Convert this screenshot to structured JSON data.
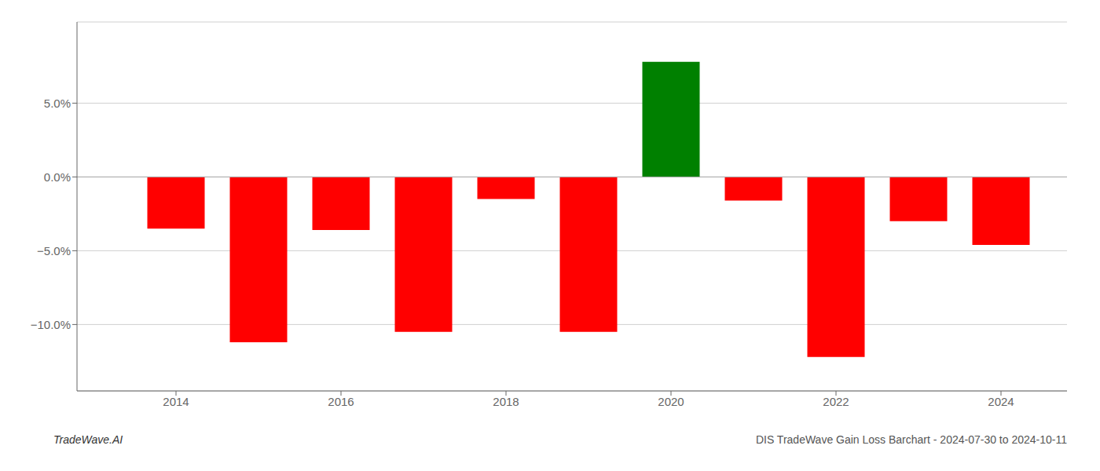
{
  "chart_data": {
    "type": "bar",
    "x": [
      2014,
      2015,
      2016,
      2017,
      2018,
      2019,
      2020,
      2021,
      2022,
      2023,
      2024
    ],
    "values": [
      -3.5,
      -11.2,
      -3.6,
      -10.5,
      -1.5,
      -10.5,
      7.8,
      -1.6,
      -12.2,
      -3.0,
      -4.6
    ],
    "colors": [
      "#ff0000",
      "#ff0000",
      "#ff0000",
      "#ff0000",
      "#ff0000",
      "#ff0000",
      "#008000",
      "#ff0000",
      "#ff0000",
      "#ff0000",
      "#ff0000"
    ],
    "xlim": [
      2012.8,
      2024.8
    ],
    "xticks": [
      2014,
      2016,
      2018,
      2020,
      2022,
      2024
    ],
    "ylim": [
      -14.5,
      10.5
    ],
    "yticks": [
      {
        "value": -10.0,
        "label": "−10.0%"
      },
      {
        "value": -5.0,
        "label": "−5.0%"
      },
      {
        "value": 0.0,
        "label": "0.0%"
      },
      {
        "value": 5.0,
        "label": "5.0%"
      }
    ],
    "grid": true,
    "annotations": [
      "TradeWave.AI",
      "DIS TradeWave Gain Loss Barchart - 2024-07-30 to 2024-10-11"
    ]
  }
}
